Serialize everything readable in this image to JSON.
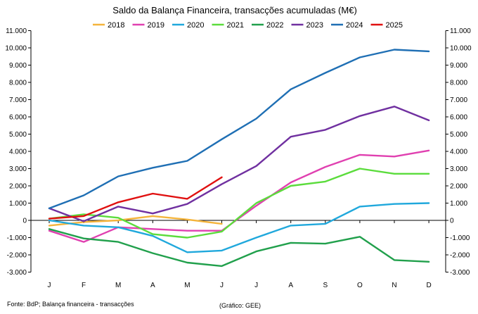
{
  "chart_data": {
    "type": "line",
    "title": "Saldo da Balança Financeira, transacções acumuladas (M€)",
    "categories": [
      "J",
      "F",
      "M",
      "A",
      "M",
      "J",
      "J",
      "A",
      "S",
      "O",
      "N",
      "D"
    ],
    "y_ticks": [
      "11.000",
      "10.000",
      "9.000",
      "8.000",
      "7.000",
      "6.000",
      "5.000",
      "4.000",
      "3.000",
      "2.000",
      "1.000",
      "0",
      "-1.000",
      "-2.000",
      "-3.000"
    ],
    "ylim": [
      -3000,
      11000
    ],
    "ytick_step": 1000,
    "grid": false,
    "legend_position": "top",
    "dual_y_axis": true,
    "series": [
      {
        "name": "2018",
        "color": "#F4B43C",
        "values": [
          -300,
          -100,
          0,
          250,
          50,
          -200,
          null,
          null,
          null,
          null,
          null,
          null
        ]
      },
      {
        "name": "2019",
        "color": "#E040B0",
        "values": [
          -600,
          -1250,
          -400,
          -500,
          -600,
          -600,
          850,
          2200,
          3100,
          3800,
          3700,
          4050
        ]
      },
      {
        "name": "2020",
        "color": "#20A8DC",
        "values": [
          0,
          -300,
          -400,
          -900,
          -1850,
          -1750,
          -1000,
          -300,
          -200,
          800,
          950,
          1000
        ]
      },
      {
        "name": "2021",
        "color": "#5BDC3C",
        "values": [
          100,
          350,
          150,
          -800,
          -1000,
          -650,
          1000,
          2000,
          2250,
          3000,
          2700,
          2700
        ]
      },
      {
        "name": "2022",
        "color": "#21A04C",
        "values": [
          -500,
          -1050,
          -1250,
          -1900,
          -2450,
          -2650,
          -1800,
          -1300,
          -1350,
          -950,
          -2300,
          -2400
        ]
      },
      {
        "name": "2023",
        "color": "#7030A0",
        "values": [
          700,
          -50,
          800,
          400,
          950,
          2100,
          3150,
          4850,
          5250,
          6050,
          6600,
          5800
        ]
      },
      {
        "name": "2024",
        "color": "#1F6FB4",
        "values": [
          700,
          1450,
          2550,
          3050,
          3450,
          4700,
          5900,
          7600,
          8550,
          9450,
          9900,
          9800
        ]
      },
      {
        "name": "2025",
        "color": "#E01010",
        "values": [
          100,
          250,
          1050,
          1550,
          1250,
          2500,
          null,
          null,
          null,
          null,
          null,
          null
        ]
      }
    ]
  },
  "footer": {
    "source": "Fonte: BdP; Balança financeira - transacções",
    "credit": "(Gráfico: GEE)"
  }
}
